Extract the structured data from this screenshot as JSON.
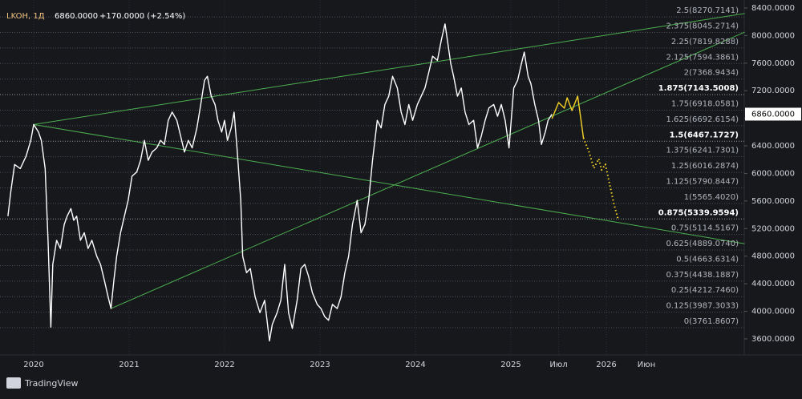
{
  "chart_data": {
    "type": "line",
    "header": {
      "symbol": "LKOH, 1Д",
      "change": "+170.0000 (+2.54%)"
    },
    "last_price": {
      "value": 6860,
      "label": "6860.0000"
    },
    "xlim": [
      2019.647,
      2027.445
    ],
    "xticks": [
      2020,
      2021,
      2022,
      2023,
      2024,
      2025,
      {
        "value": 2025.5,
        "label": "Июл"
      },
      2026,
      {
        "value": 2026.42,
        "label": "Июн"
      }
    ],
    "ylim": [
      3367,
      8516
    ],
    "yticks": [
      {
        "value": 3600,
        "label": "3600.0000"
      },
      {
        "value": 4000,
        "label": "4000.0000"
      },
      {
        "value": 4400,
        "label": "4400.0000"
      },
      {
        "value": 4800,
        "label": "4800.0000"
      },
      {
        "value": 5200,
        "label": "5200.0000"
      },
      {
        "value": 5600,
        "label": "5600.0000"
      },
      {
        "value": 6000,
        "label": "6000.0000"
      },
      {
        "value": 6400,
        "label": "6400.0000"
      },
      {
        "value": 6800,
        "label": "6800.0000"
      },
      {
        "value": 7200,
        "label": "7200.0000"
      },
      {
        "value": 7600,
        "label": "7600.0000"
      },
      {
        "value": 8000,
        "label": "8000.0000"
      },
      {
        "value": 8400,
        "label": "8400.0000"
      }
    ],
    "grid": true,
    "series": [
      {
        "color": "#ffffff",
        "style": "solid",
        "x": [
          2019.73,
          2019.76,
          2019.8,
          2019.86,
          2019.92,
          2019.97,
          2020.0,
          2020.05,
          2020.08,
          2020.12,
          2020.15,
          2020.18,
          2020.2,
          2020.24,
          2020.28,
          2020.32,
          2020.35,
          2020.39,
          2020.42,
          2020.45,
          2020.49,
          2020.53,
          2020.57,
          2020.61,
          2020.66,
          2020.7,
          2020.74,
          2020.78,
          2020.81,
          2020.84,
          2020.87,
          2020.91,
          2020.95,
          2020.99,
          2021.03,
          2021.08,
          2021.12,
          2021.16,
          2021.2,
          2021.24,
          2021.29,
          2021.33,
          2021.37,
          2021.41,
          2021.45,
          2021.5,
          2021.54,
          2021.58,
          2021.62,
          2021.66,
          2021.71,
          2021.75,
          2021.79,
          2021.82,
          2021.86,
          2021.9,
          2021.93,
          2021.97,
          2022.0,
          2022.03,
          2022.07,
          2022.1,
          2022.13,
          2022.17,
          2022.19,
          2022.23,
          2022.27,
          2022.32,
          2022.37,
          2022.42,
          2022.47,
          2022.5,
          2022.55,
          2022.59,
          2022.63,
          2022.67,
          2022.71,
          2022.76,
          2022.8,
          2022.84,
          2022.88,
          2022.92,
          2022.97,
          2023.01,
          2023.05,
          2023.09,
          2023.13,
          2023.18,
          2023.22,
          2023.26,
          2023.3,
          2023.34,
          2023.39,
          2023.43,
          2023.47,
          2023.51,
          2023.55,
          2023.6,
          2023.64,
          2023.68,
          2023.72,
          2023.76,
          2023.81,
          2023.85,
          2023.89,
          2023.93,
          2023.97,
          2024.02,
          2024.06,
          2024.1,
          2024.14,
          2024.18,
          2024.23,
          2024.27,
          2024.31,
          2024.34,
          2024.37,
          2024.4,
          2024.44,
          2024.48,
          2024.52,
          2024.56,
          2024.61,
          2024.65,
          2024.69,
          2024.73,
          2024.77,
          2024.82,
          2024.86,
          2024.9,
          2024.94,
          2024.98,
          2025.03,
          2025.07,
          2025.11,
          2025.14,
          2025.18,
          2025.21,
          2025.25,
          2025.29,
          2025.32,
          2025.36,
          2025.39,
          2025.43
        ],
        "values": [
          5380,
          5730,
          6130,
          6070,
          6250,
          6480,
          6710,
          6600,
          6480,
          6070,
          5030,
          3770,
          4680,
          5030,
          4910,
          5260,
          5380,
          5490,
          5320,
          5380,
          5030,
          5140,
          4910,
          5030,
          4800,
          4680,
          4450,
          4210,
          4040,
          4450,
          4800,
          5140,
          5380,
          5610,
          5960,
          6020,
          6190,
          6480,
          6190,
          6310,
          6370,
          6480,
          6420,
          6770,
          6890,
          6770,
          6540,
          6310,
          6480,
          6370,
          6660,
          7000,
          7350,
          7410,
          7120,
          7000,
          6770,
          6600,
          6770,
          6480,
          6660,
          6890,
          6370,
          5610,
          4800,
          4560,
          4620,
          4210,
          3980,
          4160,
          3570,
          3810,
          3980,
          4160,
          4680,
          3980,
          3750,
          4160,
          4620,
          4680,
          4510,
          4270,
          4100,
          4040,
          3920,
          3870,
          4100,
          4040,
          4210,
          4560,
          4800,
          5260,
          5610,
          5140,
          5260,
          5610,
          6190,
          6770,
          6660,
          7000,
          7120,
          7410,
          7240,
          6890,
          6710,
          7000,
          6770,
          7000,
          7120,
          7240,
          7470,
          7700,
          7640,
          7930,
          8170,
          7880,
          7590,
          7410,
          7120,
          7240,
          6890,
          6710,
          6770,
          6370,
          6540,
          6770,
          6950,
          7000,
          6830,
          7000,
          6770,
          6370,
          7240,
          7350,
          7590,
          7760,
          7410,
          7300,
          7000,
          6770,
          6420,
          6600,
          6770,
          6860
        ]
      },
      {
        "color": "#f5d327",
        "style": "solid",
        "x": [
          2025.43,
          2025.5,
          2025.56,
          2025.59,
          2025.64,
          2025.7,
          2025.76
        ],
        "values": [
          6795,
          7028,
          6947,
          7098,
          6912,
          7121,
          6516
        ]
      },
      {
        "color": "#f5d327",
        "style": "dotted",
        "x": [
          2025.76,
          2025.82,
          2025.87,
          2025.92,
          2025.95,
          2025.99,
          2026.08,
          2026.12
        ],
        "values": [
          6516,
          6307,
          6074,
          6214,
          6051,
          6133,
          5551,
          5353
        ]
      }
    ],
    "trend_lines": [
      {
        "color": "#4caf50",
        "x": [
          2020.0,
          2027.45
        ],
        "values": [
          6710,
          8320
        ]
      },
      {
        "color": "#4caf50",
        "x": [
          2020.0,
          2027.45
        ],
        "values": [
          6710,
          4980
        ]
      },
      {
        "color": "#4caf50",
        "x": [
          2020.81,
          2027.45
        ],
        "values": [
          4040,
          8050
        ]
      }
    ],
    "fib_levels": [
      {
        "label": "2.5(8270.7141)",
        "value": 8270.7141,
        "bold": false
      },
      {
        "label": "2.375(8045.2714)",
        "value": 8045.2714,
        "bold": false
      },
      {
        "label": "2.25(7819.8288)",
        "value": 7819.8288,
        "bold": false
      },
      {
        "label": "2.125(7594.3861)",
        "value": 7594.3861,
        "bold": false
      },
      {
        "label": "2(7368.9434)",
        "value": 7368.9434,
        "bold": false
      },
      {
        "label": "1.875(7143.5008)",
        "value": 7143.5008,
        "bold": true
      },
      {
        "label": "1.75(6918.0581)",
        "value": 6918.0581,
        "bold": false
      },
      {
        "label": "1.625(6692.6154)",
        "value": 6692.6154,
        "bold": false
      },
      {
        "label": "1.5(6467.1727)",
        "value": 6467.1727,
        "bold": true
      },
      {
        "label": "1.375(6241.7301)",
        "value": 6241.7301,
        "bold": false
      },
      {
        "label": "1.25(6016.2874)",
        "value": 6016.2874,
        "bold": false
      },
      {
        "label": "1.125(5790.8447)",
        "value": 5790.8447,
        "bold": false
      },
      {
        "label": "1(5565.4020)",
        "value": 5565.402,
        "bold": false
      },
      {
        "label": "0.875(5339.9594)",
        "value": 5339.9594,
        "bold": true
      },
      {
        "label": "0.75(5114.5167)",
        "value": 5114.5167,
        "bold": false
      },
      {
        "label": "0.625(4889.0740)",
        "value": 4889.074,
        "bold": false
      },
      {
        "label": "0.5(4663.6314)",
        "value": 4663.6314,
        "bold": false
      },
      {
        "label": "0.375(4438.1887)",
        "value": 4438.1887,
        "bold": false
      },
      {
        "label": "0.25(4212.7460)",
        "value": 4212.746,
        "bold": false
      },
      {
        "label": "0.125(3987.3033)",
        "value": 3987.3033,
        "bold": false
      },
      {
        "label": "0(3761.8607)",
        "value": 3761.8607,
        "bold": false
      }
    ],
    "footer": "TradingView"
  }
}
